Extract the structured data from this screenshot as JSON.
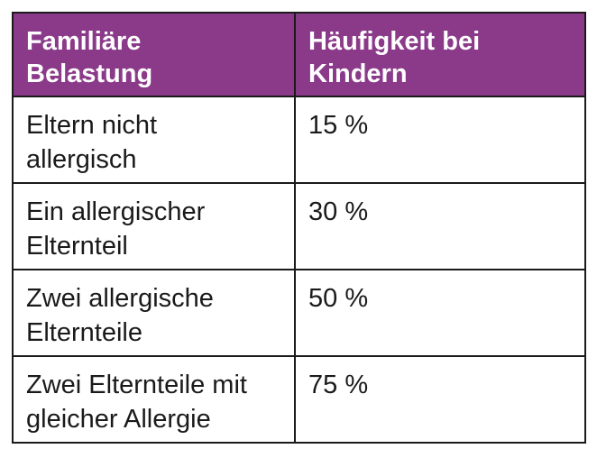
{
  "table": {
    "header": {
      "col1": [
        "Familiäre",
        "Belastung"
      ],
      "col2": [
        "Häufigkeit bei",
        "Kindern"
      ]
    },
    "rows": [
      {
        "label": [
          "Eltern nicht",
          "allergisch"
        ],
        "value": "15 %"
      },
      {
        "label": [
          "Ein allergischer",
          "Elternteil"
        ],
        "value": "30 %"
      },
      {
        "label": [
          "Zwei allergische",
          "Elternteile"
        ],
        "value": "50 %"
      },
      {
        "label": [
          "Zwei Elternteile mit",
          "gleicher Allergie"
        ],
        "value": "75 %"
      }
    ]
  },
  "colors": {
    "header_bg": "#8b3a8a",
    "header_text": "#ffffff",
    "border": "#1a1a1a",
    "body_text": "#1a1a1a"
  }
}
